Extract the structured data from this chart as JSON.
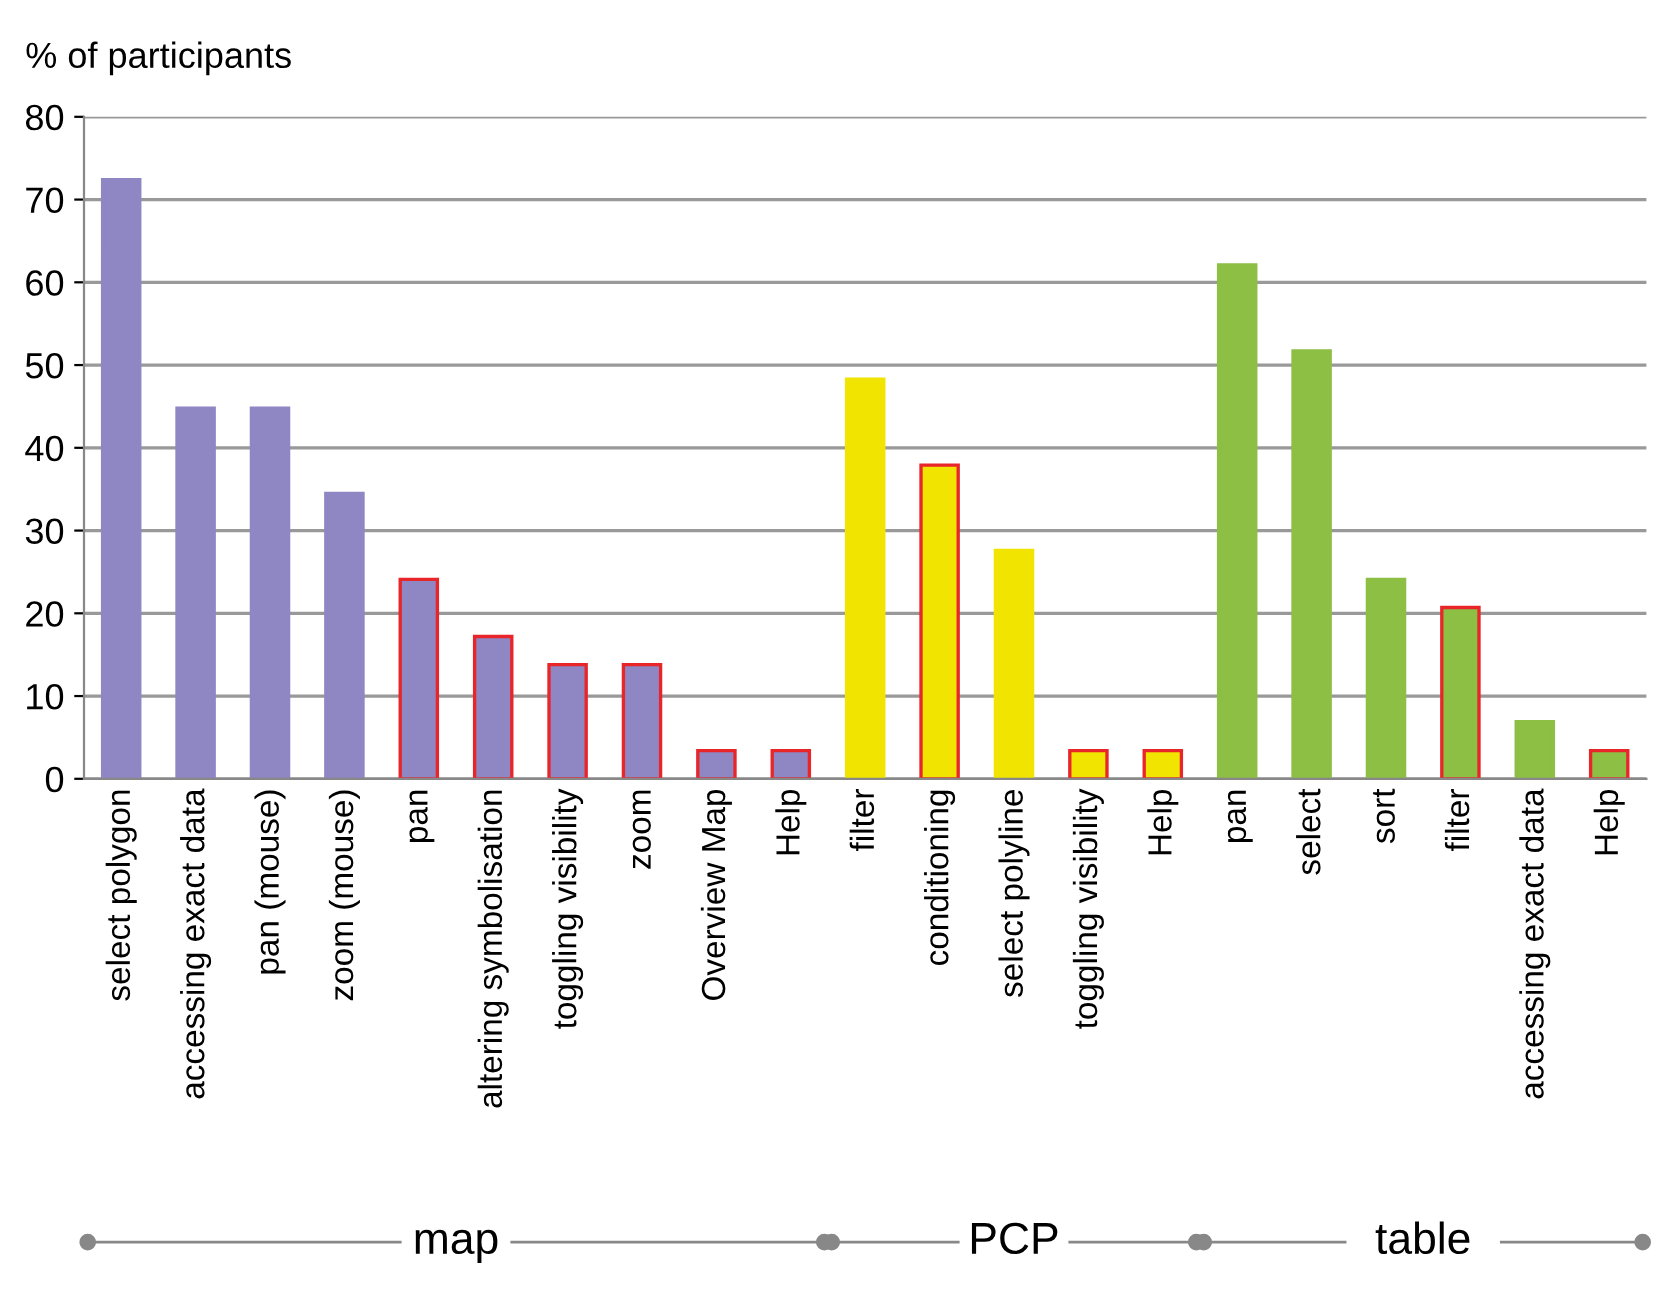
{
  "chart_data": {
    "type": "bar",
    "ylabel": "% of participants",
    "categories": [
      "select polygon",
      "accessing exact data",
      "pan (mouse)",
      "zoom (mouse)",
      "pan",
      "altering symbolisation",
      "toggling visibility",
      "zoom",
      "Overview Map",
      "Help",
      "filter",
      "conditioning",
      "select polyline",
      "toggling visibility",
      "Help",
      "pan",
      "select",
      "sort",
      "filter",
      "accessing exact data",
      "Help"
    ],
    "series": [
      {
        "colors": [
          "#8f86c4",
          "#8f86c4",
          "#8f86c4",
          "#8f86c4",
          "#8f86c4",
          "#8f86c4",
          "#8f86c4",
          "#8f86c4",
          "#8f86c4",
          "#8f86c4",
          "#f0e400",
          "#f0e400",
          "#f0e400",
          "#f0e400",
          "#f0e400",
          "#8cbf44",
          "#8cbf44",
          "#8cbf44",
          "#8cbf44",
          "#8cbf44",
          "#8cbf44"
        ],
        "values": [
          72.4,
          44.8,
          44.8,
          34.5,
          null,
          null,
          null,
          null,
          null,
          null,
          48.3,
          null,
          27.6,
          null,
          null,
          62.1,
          51.7,
          24.1,
          null,
          6.9,
          null
        ]
      },
      {
        "color": "#e8262a",
        "colors": [
          "#8f86c4",
          "#8f86c4",
          "#8f86c4",
          "#8f86c4",
          "#8f86c4",
          "#8f86c4",
          "#8f86c4",
          "#8f86c4",
          "#8f86c4",
          "#8f86c4",
          "#f0e400",
          "#f0e400",
          "#f0e400",
          "#f0e400",
          "#f0e400",
          "#8cbf44",
          "#8cbf44",
          "#8cbf44",
          "#8cbf44",
          "#8cbf44",
          "#8cbf44"
        ],
        "values": [
          null,
          null,
          null,
          null,
          24.1,
          17.2,
          13.8,
          13.8,
          3.4,
          3.4,
          null,
          37.9,
          null,
          3.4,
          3.4,
          null,
          null,
          null,
          20.7,
          null,
          3.4
        ]
      }
    ],
    "ylim": [
      0,
      80
    ],
    "yticks": [
      0,
      10,
      20,
      30,
      40,
      50,
      60,
      70,
      80
    ],
    "grid": "y",
    "legend": false,
    "annotations": [
      "map",
      "PCP",
      "table"
    ]
  }
}
